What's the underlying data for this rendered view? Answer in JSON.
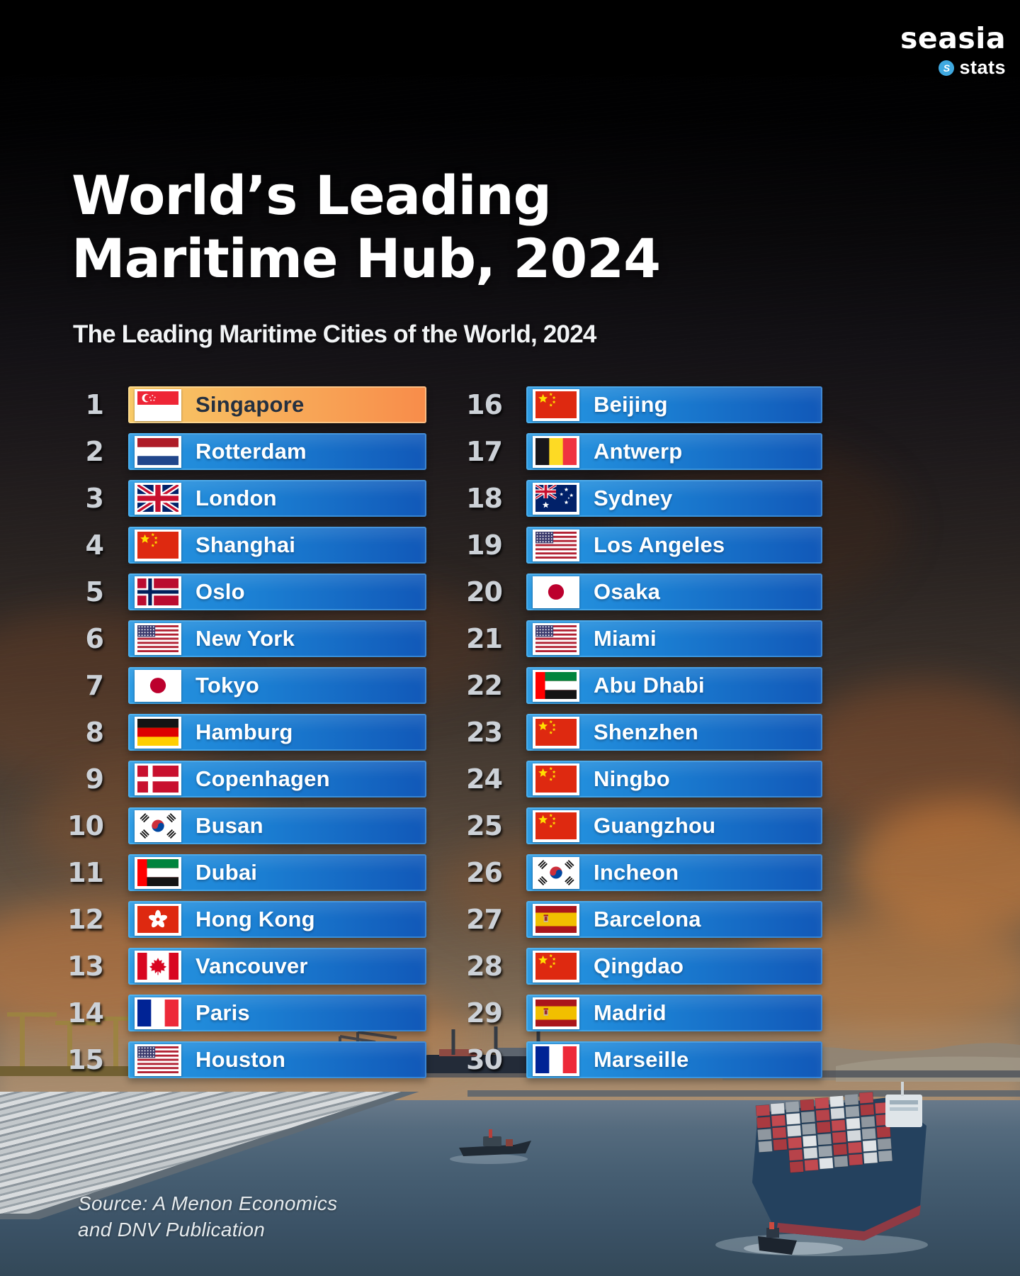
{
  "brand": {
    "name": "seasia",
    "tagline": "stats",
    "badge_glyph": "S"
  },
  "header": {
    "title_line1": "World’s Leading",
    "title_line2": "Maritime Hub, 2024",
    "subtitle": "The Leading Maritime Cities of the World, 2024"
  },
  "source": {
    "line1": "Source: A Menon Economics",
    "line2": "and DNV Publication"
  },
  "colors": {
    "bar_blue_start": "#2899E3",
    "bar_blue_end": "#1158B8",
    "highlight_start": "#F8CA67",
    "highlight_end": "#F88C4A",
    "logo_badge": "#3FA9E0",
    "rank_text": "#CCD1D7"
  },
  "ranking": [
    {
      "rank": 1,
      "city": "Singapore",
      "flag": "sg",
      "highlight": true
    },
    {
      "rank": 2,
      "city": "Rotterdam",
      "flag": "nl"
    },
    {
      "rank": 3,
      "city": "London",
      "flag": "gb"
    },
    {
      "rank": 4,
      "city": "Shanghai",
      "flag": "cn"
    },
    {
      "rank": 5,
      "city": "Oslo",
      "flag": "no"
    },
    {
      "rank": 6,
      "city": "New York",
      "flag": "us"
    },
    {
      "rank": 7,
      "city": "Tokyo",
      "flag": "jp"
    },
    {
      "rank": 8,
      "city": "Hamburg",
      "flag": "de"
    },
    {
      "rank": 9,
      "city": "Copenhagen",
      "flag": "dk"
    },
    {
      "rank": 10,
      "city": "Busan",
      "flag": "kr"
    },
    {
      "rank": 11,
      "city": "Dubai",
      "flag": "ae"
    },
    {
      "rank": 12,
      "city": "Hong Kong",
      "flag": "hk"
    },
    {
      "rank": 13,
      "city": "Vancouver",
      "flag": "ca"
    },
    {
      "rank": 14,
      "city": "Paris",
      "flag": "fr"
    },
    {
      "rank": 15,
      "city": "Houston",
      "flag": "us"
    },
    {
      "rank": 16,
      "city": "Beijing",
      "flag": "cn"
    },
    {
      "rank": 17,
      "city": "Antwerp",
      "flag": "be"
    },
    {
      "rank": 18,
      "city": "Sydney",
      "flag": "au"
    },
    {
      "rank": 19,
      "city": "Los Angeles",
      "flag": "us"
    },
    {
      "rank": 20,
      "city": "Osaka",
      "flag": "jp"
    },
    {
      "rank": 21,
      "city": "Miami",
      "flag": "us"
    },
    {
      "rank": 22,
      "city": "Abu Dhabi",
      "flag": "ae"
    },
    {
      "rank": 23,
      "city": "Shenzhen",
      "flag": "cn"
    },
    {
      "rank": 24,
      "city": "Ningbo",
      "flag": "cn"
    },
    {
      "rank": 25,
      "city": "Guangzhou",
      "flag": "cn"
    },
    {
      "rank": 26,
      "city": "Incheon",
      "flag": "kr"
    },
    {
      "rank": 27,
      "city": "Barcelona",
      "flag": "es"
    },
    {
      "rank": 28,
      "city": "Qingdao",
      "flag": "cn"
    },
    {
      "rank": 29,
      "city": "Madrid",
      "flag": "es"
    },
    {
      "rank": 30,
      "city": "Marseille",
      "flag": "fr"
    }
  ]
}
